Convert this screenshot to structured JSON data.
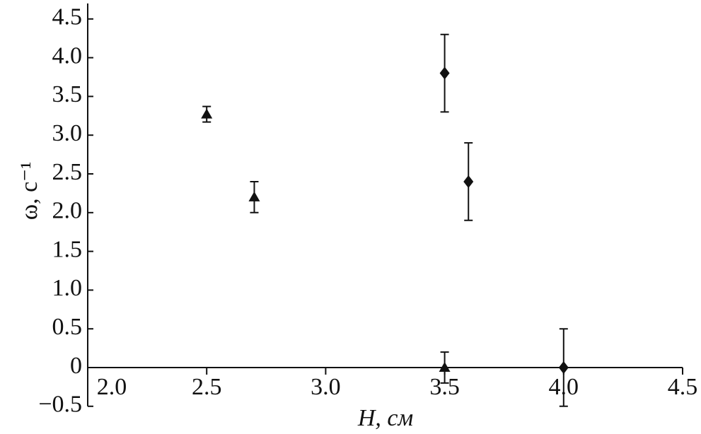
{
  "chart_data": {
    "type": "scatter",
    "xlabel": "H, см",
    "ylabel": "ω, с⁻¹",
    "xlim": [
      2.0,
      4.5
    ],
    "ylim": [
      -0.5,
      4.7
    ],
    "xticks": [
      {
        "value": 2,
        "label": "2.0"
      },
      2.5,
      {
        "value": 3,
        "label": "3.0"
      },
      3.5,
      {
        "value": 4,
        "label": "4.0"
      },
      4.5
    ],
    "yticks": [
      {
        "value": -0.5,
        "label": "−0.5"
      },
      0,
      0.5,
      {
        "value": 1,
        "label": "1.0"
      },
      1.5,
      {
        "value": 2,
        "label": "2.0"
      },
      2.5,
      {
        "value": 3,
        "label": "3.0"
      },
      3.5,
      {
        "value": 4,
        "label": "4.0"
      },
      4.5
    ],
    "series": [
      {
        "marker": "triangle",
        "color": "#111111",
        "x": [
          2.5,
          2.7,
          3.5
        ],
        "values": [
          3.27,
          2.2,
          0
        ],
        "errors": [
          0.1,
          0.2,
          0.2
        ]
      },
      {
        "marker": "diamond",
        "color": "#111111",
        "x": [
          3.5,
          3.6,
          4.0
        ],
        "values": [
          3.8,
          2.4,
          0
        ],
        "errors": [
          0.5,
          0.5,
          0.5
        ]
      }
    ]
  }
}
